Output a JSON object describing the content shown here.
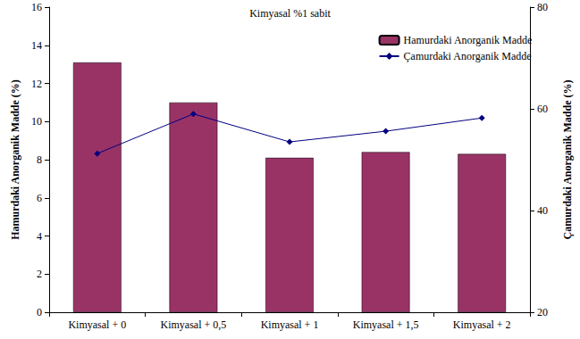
{
  "chart_data": {
    "type": "bar",
    "title": "Kimyasal %1 sabit",
    "categories": [
      "Kimyasal + 0",
      "Kimyasal + 0,5",
      "Kimyasal + 1",
      "Kimyasal + 1,5",
      "Kimyasal + 2"
    ],
    "series": [
      {
        "name": "Hamurdaki Anorganik Madde",
        "type": "bar",
        "color": "#993366",
        "values": [
          13.1,
          11.0,
          8.1,
          8.4,
          8.3
        ]
      },
      {
        "name": "Çamurdaki Anorganik Madde",
        "type": "line",
        "axis": "y2",
        "color": "#000080",
        "marker": "diamond",
        "line_style": "solid",
        "values": [
          51.2,
          59.0,
          53.5,
          55.6,
          58.2
        ]
      }
    ],
    "ylabel": "Hamurdaki Anorganik Madde (%)",
    "y2label": "Çamurdaki Anorganik Madde (%)",
    "ylim": [
      0,
      16
    ],
    "yticks": [
      0,
      2,
      4,
      6,
      8,
      10,
      12,
      14,
      16
    ],
    "y2lim": [
      20,
      80
    ],
    "y2ticks": [
      20,
      40,
      60,
      80
    ],
    "grid": false,
    "legend": "top-right"
  }
}
